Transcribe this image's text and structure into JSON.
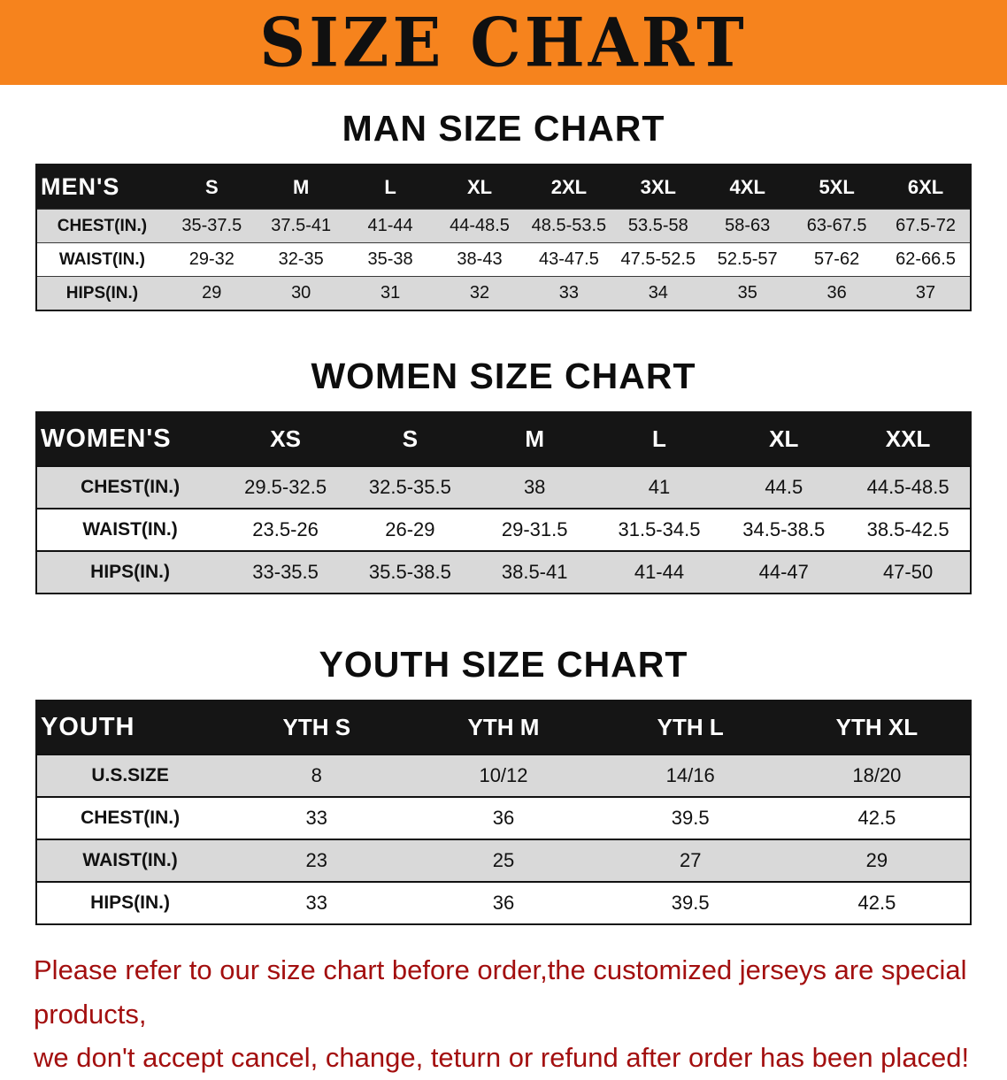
{
  "banner": {
    "title": "SIZE CHART",
    "bg_color": "#f6831d",
    "text_color": "#101010"
  },
  "colors": {
    "table_header_bg": "#151515",
    "row_stripe": "#d9d9d9"
  },
  "sections": [
    {
      "id": "men",
      "title": "MAN SIZE CHART",
      "table": {
        "header": [
          "MEN'S",
          "S",
          "M",
          "L",
          "XL",
          "2XL",
          "3XL",
          "4XL",
          "5XL",
          "6XL"
        ],
        "rows": [
          [
            "CHEST(IN.)",
            "35-37.5",
            "37.5-41",
            "41-44",
            "44-48.5",
            "48.5-53.5",
            "53.5-58",
            "58-63",
            "63-67.5",
            "67.5-72"
          ],
          [
            "WAIST(IN.)",
            "29-32",
            "32-35",
            "35-38",
            "38-43",
            "43-47.5",
            "47.5-52.5",
            "52.5-57",
            "57-62",
            "62-66.5"
          ],
          [
            "HIPS(IN.)",
            "29",
            "30",
            "31",
            "32",
            "33",
            "34",
            "35",
            "36",
            "37"
          ]
        ]
      }
    },
    {
      "id": "women",
      "title": "WOMEN SIZE CHART",
      "table": {
        "header": [
          "WOMEN'S",
          "XS",
          "S",
          "M",
          "L",
          "XL",
          "XXL"
        ],
        "rows": [
          [
            "CHEST(IN.)",
            "29.5-32.5",
            "32.5-35.5",
            "38",
            "41",
            "44.5",
            "44.5-48.5"
          ],
          [
            "WAIST(IN.)",
            "23.5-26",
            "26-29",
            "29-31.5",
            "31.5-34.5",
            "34.5-38.5",
            "38.5-42.5"
          ],
          [
            "HIPS(IN.)",
            "33-35.5",
            "35.5-38.5",
            "38.5-41",
            "41-44",
            "44-47",
            "47-50"
          ]
        ]
      }
    },
    {
      "id": "youth",
      "title": "YOUTH SIZE CHART",
      "table": {
        "header": [
          "YOUTH",
          "YTH S",
          "YTH M",
          "YTH L",
          "YTH XL"
        ],
        "rows": [
          [
            "U.S.SIZE",
            "8",
            "10/12",
            "14/16",
            "18/20"
          ],
          [
            "CHEST(IN.)",
            "33",
            "36",
            "39.5",
            "42.5"
          ],
          [
            "WAIST(IN.)",
            "23",
            "25",
            "27",
            "29"
          ],
          [
            "HIPS(IN.)",
            "33",
            "36",
            "39.5",
            "42.5"
          ]
        ]
      }
    }
  ],
  "footer": {
    "line1": "Please refer to our size chart before order,the customized jerseys are special products,",
    "line2": "we don't accept cancel, change, teturn or refund after order has been placed!",
    "color": "#a30f0f"
  }
}
